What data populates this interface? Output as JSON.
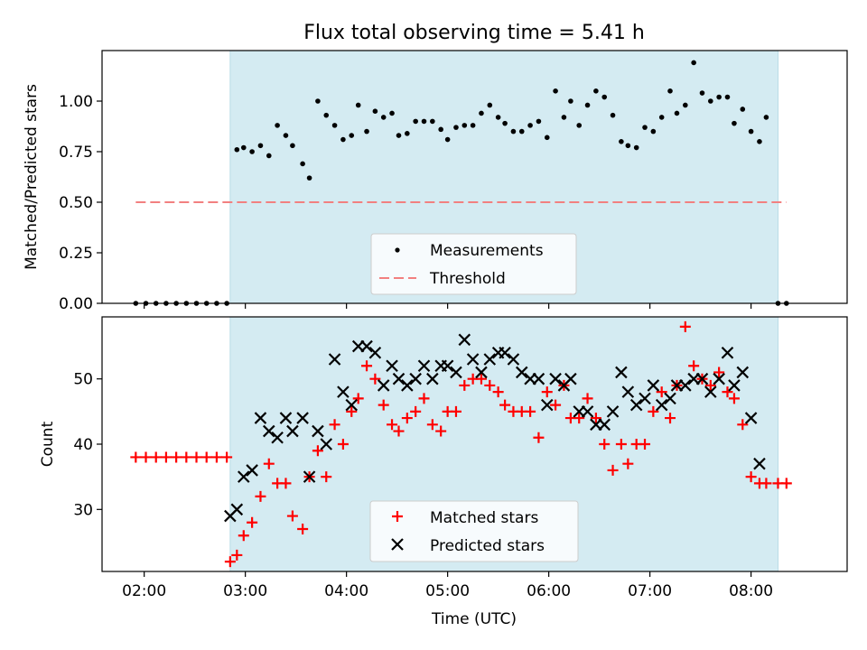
{
  "chart_data": [
    {
      "type": "scatter",
      "title": "Flux total observing time = 5.41 h",
      "xlabel": "",
      "ylabel": "Matched/Predicted stars",
      "x_unit": "time (UTC)",
      "xlim": [
        "01:35",
        "08:57"
      ],
      "ylim": [
        0,
        1.25
      ],
      "y_ticks": [
        "0.00",
        "0.25",
        "0.50",
        "0.75",
        "1.00"
      ],
      "grid": false,
      "legend_position": "lower center",
      "observing_window": [
        "02:51",
        "08:16"
      ],
      "observing_window_color": "#d4ebf2",
      "series": [
        {
          "name": "Measurements",
          "marker": "dot",
          "color": "#000000",
          "points": [
            [
              "01:55",
              0.0
            ],
            [
              "02:01",
              0.0
            ],
            [
              "02:07",
              0.0
            ],
            [
              "02:13",
              0.0
            ],
            [
              "02:19",
              0.0
            ],
            [
              "02:25",
              0.0
            ],
            [
              "02:31",
              0.0
            ],
            [
              "02:37",
              0.0
            ],
            [
              "02:43",
              0.0
            ],
            [
              "02:49",
              0.0
            ],
            [
              "02:55",
              0.76
            ],
            [
              "02:59",
              0.77
            ],
            [
              "03:04",
              0.75
            ],
            [
              "03:09",
              0.78
            ],
            [
              "03:14",
              0.73
            ],
            [
              "03:19",
              0.88
            ],
            [
              "03:24",
              0.83
            ],
            [
              "03:28",
              0.78
            ],
            [
              "03:34",
              0.69
            ],
            [
              "03:38",
              0.62
            ],
            [
              "03:43",
              1.0
            ],
            [
              "03:48",
              0.93
            ],
            [
              "03:53",
              0.88
            ],
            [
              "03:58",
              0.81
            ],
            [
              "04:03",
              0.83
            ],
            [
              "04:07",
              0.98
            ],
            [
              "04:12",
              0.85
            ],
            [
              "04:17",
              0.95
            ],
            [
              "04:22",
              0.92
            ],
            [
              "04:27",
              0.94
            ],
            [
              "04:31",
              0.83
            ],
            [
              "04:36",
              0.84
            ],
            [
              "04:41",
              0.9
            ],
            [
              "04:46",
              0.9
            ],
            [
              "04:51",
              0.9
            ],
            [
              "04:56",
              0.86
            ],
            [
              "05:00",
              0.81
            ],
            [
              "05:05",
              0.87
            ],
            [
              "05:10",
              0.88
            ],
            [
              "05:15",
              0.88
            ],
            [
              "05:20",
              0.94
            ],
            [
              "05:25",
              0.98
            ],
            [
              "05:30",
              0.92
            ],
            [
              "05:34",
              0.89
            ],
            [
              "05:39",
              0.85
            ],
            [
              "05:44",
              0.85
            ],
            [
              "05:49",
              0.88
            ],
            [
              "05:54",
              0.9
            ],
            [
              "05:59",
              0.82
            ],
            [
              "06:04",
              1.05
            ],
            [
              "06:09",
              0.92
            ],
            [
              "06:13",
              1.0
            ],
            [
              "06:18",
              0.88
            ],
            [
              "06:23",
              0.98
            ],
            [
              "06:28",
              1.05
            ],
            [
              "06:33",
              1.02
            ],
            [
              "06:38",
              0.93
            ],
            [
              "06:43",
              0.8
            ],
            [
              "06:47",
              0.78
            ],
            [
              "06:52",
              0.77
            ],
            [
              "06:57",
              0.87
            ],
            [
              "07:02",
              0.85
            ],
            [
              "07:07",
              0.92
            ],
            [
              "07:12",
              1.05
            ],
            [
              "07:16",
              0.94
            ],
            [
              "07:21",
              0.98
            ],
            [
              "07:26",
              1.19
            ],
            [
              "07:31",
              1.04
            ],
            [
              "07:36",
              1.0
            ],
            [
              "07:41",
              1.02
            ],
            [
              "07:46",
              1.02
            ],
            [
              "07:50",
              0.89
            ],
            [
              "07:55",
              0.96
            ],
            [
              "08:00",
              0.85
            ],
            [
              "08:05",
              0.8
            ],
            [
              "08:09",
              0.92
            ],
            [
              "08:16",
              0.0
            ],
            [
              "08:21",
              0.0
            ]
          ]
        },
        {
          "name": "Threshold",
          "marker": "dashed-line",
          "color": "#f28080",
          "points": [
            [
              "01:55",
              0.5
            ],
            [
              "08:21",
              0.5
            ]
          ]
        }
      ]
    },
    {
      "type": "scatter",
      "title": "",
      "xlabel": "Time (UTC)",
      "ylabel": "Count",
      "xlim": [
        "01:35",
        "08:57"
      ],
      "ylim": [
        20.5,
        59.5
      ],
      "x_ticks": [
        "02:00",
        "03:00",
        "04:00",
        "05:00",
        "06:00",
        "07:00",
        "08:00"
      ],
      "y_ticks": [
        "30",
        "40",
        "50"
      ],
      "grid": false,
      "legend_position": "lower center",
      "observing_window": [
        "02:51",
        "08:16"
      ],
      "observing_window_color": "#d4ebf2",
      "series": [
        {
          "name": "Matched stars",
          "marker": "plus",
          "color": "#ff0000",
          "points": [
            [
              "01:55",
              38
            ],
            [
              "02:01",
              38
            ],
            [
              "02:07",
              38
            ],
            [
              "02:13",
              38
            ],
            [
              "02:19",
              38
            ],
            [
              "02:25",
              38
            ],
            [
              "02:31",
              38
            ],
            [
              "02:37",
              38
            ],
            [
              "02:43",
              38
            ],
            [
              "02:49",
              38
            ],
            [
              "02:51",
              22
            ],
            [
              "02:55",
              23
            ],
            [
              "02:59",
              26
            ],
            [
              "03:04",
              28
            ],
            [
              "03:09",
              32
            ],
            [
              "03:14",
              37
            ],
            [
              "03:19",
              34
            ],
            [
              "03:24",
              34
            ],
            [
              "03:28",
              29
            ],
            [
              "03:34",
              27
            ],
            [
              "03:38",
              35
            ],
            [
              "03:43",
              39
            ],
            [
              "03:48",
              35
            ],
            [
              "03:53",
              43
            ],
            [
              "03:58",
              40
            ],
            [
              "04:03",
              45
            ],
            [
              "04:07",
              47
            ],
            [
              "04:12",
              52
            ],
            [
              "04:17",
              50
            ],
            [
              "04:22",
              46
            ],
            [
              "04:27",
              43
            ],
            [
              "04:31",
              42
            ],
            [
              "04:36",
              44
            ],
            [
              "04:41",
              45
            ],
            [
              "04:46",
              47
            ],
            [
              "04:51",
              43
            ],
            [
              "04:56",
              42
            ],
            [
              "05:00",
              45
            ],
            [
              "05:05",
              45
            ],
            [
              "05:10",
              49
            ],
            [
              "05:15",
              50
            ],
            [
              "05:20",
              50
            ],
            [
              "05:25",
              49
            ],
            [
              "05:30",
              48
            ],
            [
              "05:34",
              46
            ],
            [
              "05:39",
              45
            ],
            [
              "05:44",
              45
            ],
            [
              "05:49",
              45
            ],
            [
              "05:54",
              41
            ],
            [
              "05:59",
              48
            ],
            [
              "06:04",
              46
            ],
            [
              "06:09",
              49
            ],
            [
              "06:13",
              44
            ],
            [
              "06:18",
              44
            ],
            [
              "06:23",
              47
            ],
            [
              "06:28",
              44
            ],
            [
              "06:33",
              40
            ],
            [
              "06:38",
              36
            ],
            [
              "06:43",
              40
            ],
            [
              "06:47",
              37
            ],
            [
              "06:52",
              40
            ],
            [
              "06:57",
              40
            ],
            [
              "07:02",
              45
            ],
            [
              "07:07",
              48
            ],
            [
              "07:12",
              44
            ],
            [
              "07:16",
              49
            ],
            [
              "07:21",
              58
            ],
            [
              "07:26",
              52
            ],
            [
              "07:31",
              50
            ],
            [
              "07:36",
              49
            ],
            [
              "07:41",
              51
            ],
            [
              "07:46",
              48
            ],
            [
              "07:50",
              47
            ],
            [
              "07:55",
              43
            ],
            [
              "08:00",
              35
            ],
            [
              "08:05",
              34
            ],
            [
              "08:09",
              34
            ],
            [
              "08:16",
              34
            ],
            [
              "08:21",
              34
            ]
          ]
        },
        {
          "name": "Predicted stars",
          "marker": "x",
          "color": "#000000",
          "points": [
            [
              "02:51",
              29
            ],
            [
              "02:55",
              30
            ],
            [
              "02:59",
              35
            ],
            [
              "03:04",
              36
            ],
            [
              "03:09",
              44
            ],
            [
              "03:14",
              42
            ],
            [
              "03:19",
              41
            ],
            [
              "03:24",
              44
            ],
            [
              "03:28",
              42
            ],
            [
              "03:34",
              44
            ],
            [
              "03:38",
              35
            ],
            [
              "03:43",
              42
            ],
            [
              "03:48",
              40
            ],
            [
              "03:53",
              53
            ],
            [
              "03:58",
              48
            ],
            [
              "04:03",
              46
            ],
            [
              "04:07",
              55
            ],
            [
              "04:12",
              55
            ],
            [
              "04:17",
              54
            ],
            [
              "04:22",
              49
            ],
            [
              "04:27",
              52
            ],
            [
              "04:31",
              50
            ],
            [
              "04:36",
              49
            ],
            [
              "04:41",
              50
            ],
            [
              "04:46",
              52
            ],
            [
              "04:51",
              50
            ],
            [
              "04:56",
              52
            ],
            [
              "05:00",
              52
            ],
            [
              "05:05",
              51
            ],
            [
              "05:10",
              56
            ],
            [
              "05:15",
              53
            ],
            [
              "05:20",
              51
            ],
            [
              "05:25",
              53
            ],
            [
              "05:30",
              54
            ],
            [
              "05:34",
              54
            ],
            [
              "05:39",
              53
            ],
            [
              "05:44",
              51
            ],
            [
              "05:49",
              50
            ],
            [
              "05:54",
              50
            ],
            [
              "05:59",
              46
            ],
            [
              "06:04",
              50
            ],
            [
              "06:09",
              49
            ],
            [
              "06:13",
              50
            ],
            [
              "06:18",
              45
            ],
            [
              "06:23",
              45
            ],
            [
              "06:28",
              43
            ],
            [
              "06:33",
              43
            ],
            [
              "06:38",
              45
            ],
            [
              "06:43",
              51
            ],
            [
              "06:47",
              48
            ],
            [
              "06:52",
              46
            ],
            [
              "06:57",
              47
            ],
            [
              "07:02",
              49
            ],
            [
              "07:07",
              46
            ],
            [
              "07:12",
              47
            ],
            [
              "07:16",
              49
            ],
            [
              "07:21",
              49
            ],
            [
              "07:26",
              50
            ],
            [
              "07:31",
              50
            ],
            [
              "07:36",
              48
            ],
            [
              "07:41",
              50
            ],
            [
              "07:46",
              54
            ],
            [
              "07:50",
              49
            ],
            [
              "07:55",
              51
            ],
            [
              "08:00",
              44
            ],
            [
              "08:05",
              37
            ]
          ]
        }
      ]
    }
  ]
}
